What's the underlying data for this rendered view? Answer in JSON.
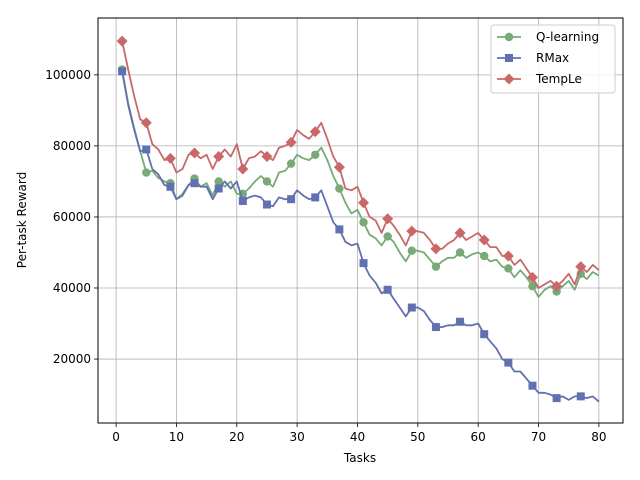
{
  "chart_data": {
    "type": "line",
    "title": "",
    "xlabel": "Tasks",
    "ylabel": "Per-task Reward",
    "xlim": [
      -3,
      84
    ],
    "ylim": [
      2000,
      116000
    ],
    "xticks": [
      0,
      10,
      20,
      30,
      40,
      50,
      60,
      70,
      80
    ],
    "yticks": [
      20000,
      40000,
      60000,
      80000,
      100000
    ],
    "grid": true,
    "legend_position": "top-right",
    "series": [
      {
        "name": "Q-learning",
        "color": "#77aa77",
        "marker": "circle",
        "x": [
          1,
          2,
          3,
          4,
          5,
          6,
          7,
          8,
          9,
          10,
          11,
          12,
          13,
          14,
          15,
          16,
          17,
          18,
          19,
          20,
          21,
          22,
          23,
          24,
          25,
          26,
          27,
          28,
          29,
          30,
          31,
          32,
          33,
          34,
          35,
          36,
          37,
          38,
          39,
          40,
          41,
          42,
          43,
          44,
          45,
          46,
          47,
          48,
          49,
          50,
          51,
          52,
          53,
          54,
          55,
          56,
          57,
          58,
          59,
          60,
          61,
          62,
          63,
          64,
          65,
          66,
          67,
          68,
          69,
          70,
          71,
          72,
          73,
          74,
          75,
          76,
          77,
          78,
          79,
          80
        ],
        "y": [
          101500,
          92000,
          85000,
          78500,
          72500,
          73000,
          71000,
          70000,
          69500,
          65000,
          66500,
          69000,
          70800,
          68500,
          69500,
          66000,
          70000,
          68500,
          70000,
          66500,
          66500,
          68000,
          70000,
          71500,
          70000,
          68500,
          72500,
          73000,
          75000,
          77500,
          76500,
          76000,
          77500,
          79500,
          76000,
          71500,
          68000,
          64000,
          61000,
          62000,
          58500,
          55000,
          54000,
          52000,
          54500,
          53000,
          50000,
          47500,
          50500,
          50500,
          50000,
          48000,
          46000,
          47500,
          48500,
          48500,
          50000,
          48500,
          49500,
          50000,
          49000,
          47500,
          48000,
          46000,
          45500,
          43000,
          45000,
          43000,
          40500,
          37500,
          39500,
          40500,
          39000,
          40500,
          42000,
          39500,
          44000,
          42500,
          44500,
          43500
        ]
      },
      {
        "name": "RMax",
        "color": "#6070b0",
        "marker": "square",
        "x": [
          1,
          2,
          3,
          4,
          5,
          6,
          7,
          8,
          9,
          10,
          11,
          12,
          13,
          14,
          15,
          16,
          17,
          18,
          19,
          20,
          21,
          22,
          23,
          24,
          25,
          26,
          27,
          28,
          29,
          30,
          31,
          32,
          33,
          34,
          35,
          36,
          37,
          38,
          39,
          40,
          41,
          42,
          43,
          44,
          45,
          46,
          47,
          48,
          49,
          50,
          51,
          52,
          53,
          54,
          55,
          56,
          57,
          58,
          59,
          60,
          61,
          62,
          63,
          64,
          65,
          66,
          67,
          68,
          69,
          70,
          71,
          72,
          73,
          74,
          75,
          76,
          77,
          78,
          79,
          80
        ],
        "y": [
          101000,
          91500,
          84500,
          78500,
          79000,
          73500,
          72000,
          69000,
          68500,
          65000,
          66000,
          69000,
          69500,
          68500,
          68500,
          65000,
          68000,
          70000,
          68000,
          70000,
          64500,
          65500,
          66000,
          65500,
          63500,
          63000,
          65500,
          65000,
          65000,
          67500,
          66000,
          65000,
          65500,
          67500,
          63000,
          58500,
          56500,
          53000,
          52000,
          52500,
          47000,
          43500,
          41500,
          38500,
          39500,
          37000,
          34500,
          32000,
          34500,
          34500,
          33500,
          31000,
          29000,
          29000,
          29500,
          29500,
          30500,
          29500,
          29500,
          30000,
          27000,
          25000,
          23000,
          20000,
          19000,
          16500,
          16500,
          14500,
          12500,
          10500,
          10500,
          10000,
          9000,
          9500,
          8500,
          9500,
          9500,
          9000,
          9500,
          8000
        ]
      },
      {
        "name": "TempLe",
        "color": "#c86868",
        "marker": "diamond",
        "x": [
          1,
          2,
          3,
          4,
          5,
          6,
          7,
          8,
          9,
          10,
          11,
          12,
          13,
          14,
          15,
          16,
          17,
          18,
          19,
          20,
          21,
          22,
          23,
          24,
          25,
          26,
          27,
          28,
          29,
          30,
          31,
          32,
          33,
          34,
          35,
          36,
          37,
          38,
          39,
          40,
          41,
          42,
          43,
          44,
          45,
          46,
          47,
          48,
          49,
          50,
          51,
          52,
          53,
          54,
          55,
          56,
          57,
          58,
          59,
          60,
          61,
          62,
          63,
          64,
          65,
          66,
          67,
          68,
          69,
          70,
          71,
          72,
          73,
          74,
          75,
          76,
          77,
          78,
          79,
          80
        ],
        "y": [
          109500,
          101500,
          94000,
          87500,
          86500,
          80500,
          79000,
          76000,
          76500,
          72500,
          73500,
          77500,
          78000,
          76500,
          77500,
          73500,
          77000,
          79000,
          77000,
          80500,
          73500,
          76500,
          77000,
          78500,
          77000,
          76000,
          79500,
          80000,
          81000,
          84500,
          83000,
          82000,
          84000,
          86500,
          82000,
          77000,
          74000,
          68000,
          67500,
          68500,
          64000,
          60000,
          59000,
          55500,
          59500,
          57500,
          55000,
          52000,
          56000,
          56000,
          55500,
          53500,
          51000,
          51000,
          52500,
          53500,
          55500,
          53500,
          54500,
          55500,
          53500,
          51500,
          51500,
          49000,
          49000,
          46500,
          48000,
          45500,
          43000,
          40000,
          41000,
          42000,
          40500,
          42000,
          44000,
          41000,
          46000,
          44500,
          46500,
          45000
        ]
      }
    ],
    "markers_every": [
      1,
      5,
      9,
      13,
      17,
      21,
      25,
      29,
      33,
      37,
      41,
      45,
      49,
      53,
      57,
      61,
      65,
      69,
      73,
      77
    ]
  }
}
